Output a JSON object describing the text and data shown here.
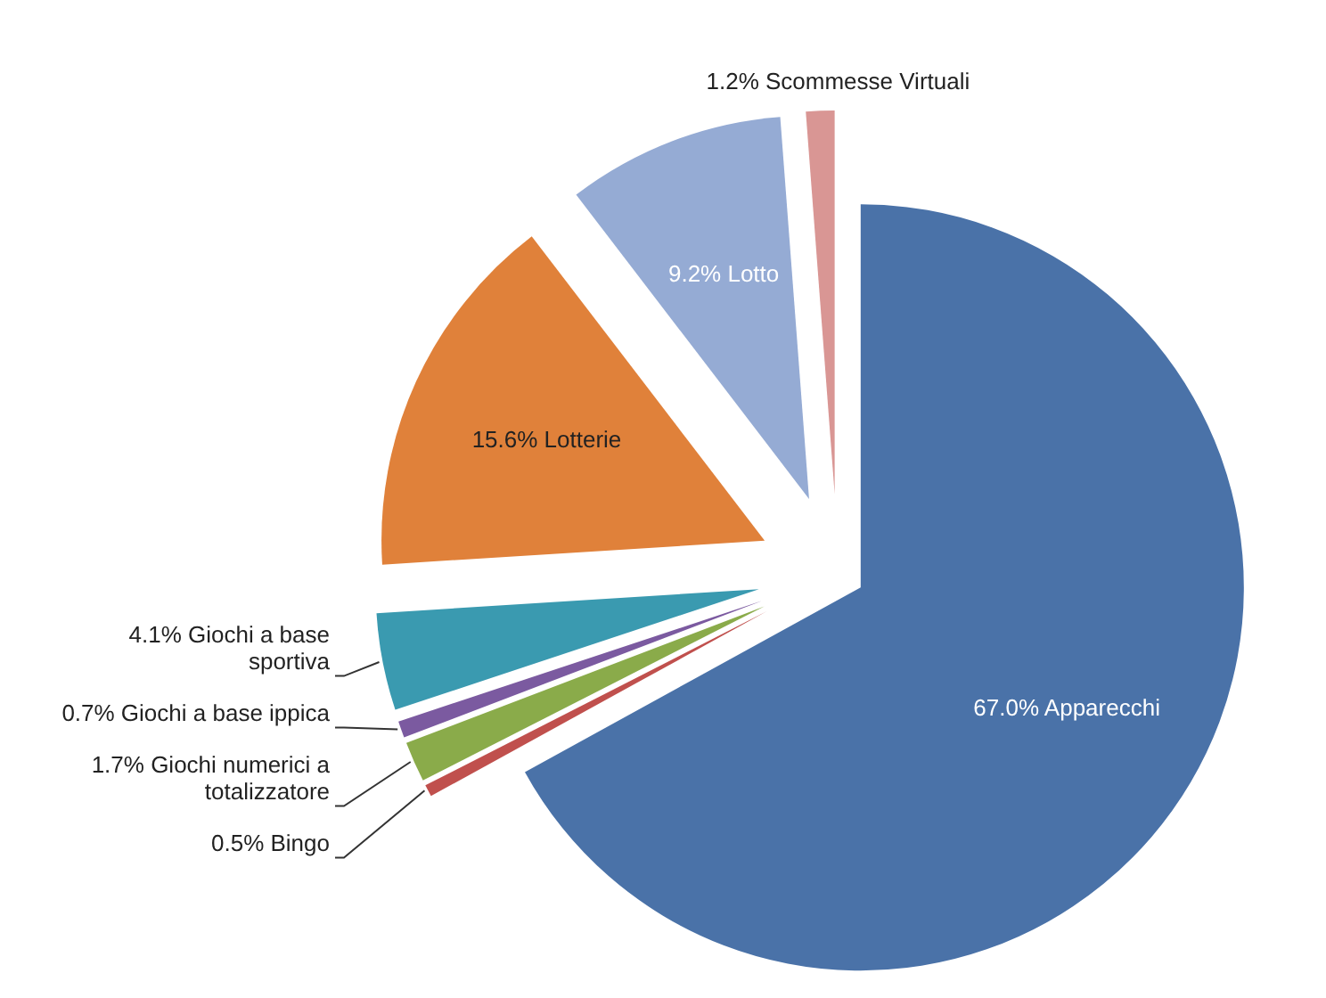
{
  "chart_data": {
    "type": "pie",
    "categories": [
      "Apparecchi",
      "Bingo",
      "Giochi numerici a totalizzatore",
      "Giochi a base ippica",
      "Giochi a base sportiva",
      "Lotterie",
      "Lotto",
      "Scommesse Virtuali"
    ],
    "values": [
      67.0,
      0.5,
      1.7,
      0.7,
      4.1,
      15.6,
      9.2,
      1.2
    ],
    "value_labels": [
      "67.0%",
      "0.5%",
      "1.7%",
      "0.7%",
      "4.1%",
      "15.6%",
      "9.2%",
      "1.2%"
    ],
    "colors": [
      "#4a72a8",
      "#c0504d",
      "#8aab4a",
      "#7b5aa0",
      "#3a9ab0",
      "#e0813a",
      "#95abd4",
      "#d99694"
    ]
  }
}
